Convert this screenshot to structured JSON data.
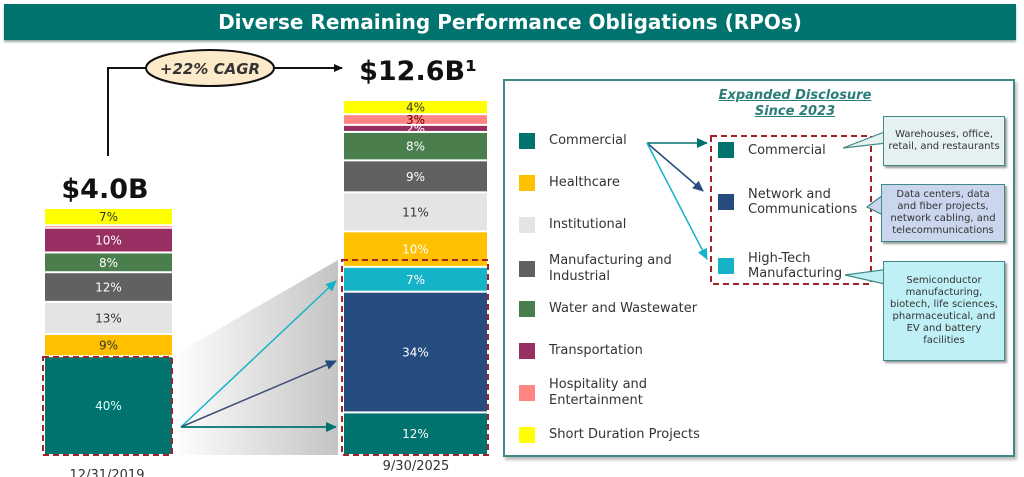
{
  "title": "Diverse Remaining Performance Obligations (RPOs)",
  "cagr_label": "+22% CAGR",
  "chart_data": {
    "type": "bar",
    "stacked": true,
    "title": "Diverse Remaining Performance Obligations (RPOs)",
    "categories": [
      "12/31/2019",
      "9/30/2025"
    ],
    "totals": [
      "$4.0B",
      "$12.6B¹"
    ],
    "annotation": "+22% CAGR",
    "series": [
      {
        "name": "Commercial",
        "color": "#00736e",
        "values": [
          40,
          12
        ]
      },
      {
        "name": "Network and Communications",
        "color": "#264b7e",
        "values": [
          0,
          34
        ]
      },
      {
        "name": "High-Tech Manufacturing",
        "color": "#14b3c8",
        "values": [
          0,
          7
        ]
      },
      {
        "name": "Healthcare",
        "color": "#ffc000",
        "values": [
          9,
          10
        ]
      },
      {
        "name": "Institutional",
        "color": "#e4e4e4",
        "values": [
          13,
          11
        ]
      },
      {
        "name": "Manufacturing and Industrial",
        "color": "#616161",
        "values": [
          12,
          9
        ]
      },
      {
        "name": "Water and Wastewater",
        "color": "#4a7f4d",
        "values": [
          8,
          8
        ]
      },
      {
        "name": "Transportation",
        "color": "#982f63",
        "values": [
          10,
          2
        ]
      },
      {
        "name": "Hospitality and Entertainment",
        "color": "#ff8585",
        "values": [
          1,
          3
        ]
      },
      {
        "name": "Short Duration Projects",
        "color": "#ffff00",
        "values": [
          7,
          4
        ]
      }
    ],
    "labels": {
      "12/31/2019": [
        "40%",
        "",
        "",
        "9%",
        "13%",
        "12%",
        "8%",
        "10%",
        "",
        "7%"
      ],
      "9/30/2025": [
        "12%",
        "34%",
        "7%",
        "10%",
        "11%",
        "9%",
        "8%",
        "2%",
        "3%",
        "4%"
      ]
    },
    "label_colors": [
      "#dff",
      "#fff",
      "#fff",
      "#333",
      "#333",
      "#fff",
      "#fff",
      "#fff",
      "#333",
      "#333"
    ],
    "label_colors_2025": [
      "#fff",
      "#fff",
      "#fff",
      "#fff",
      "#333",
      "#fff",
      "#fff",
      "#fff",
      "#600",
      "#333"
    ],
    "legend": "right"
  },
  "legend": {
    "items": [
      {
        "label": "Commercial",
        "color": "#00736e"
      },
      {
        "label": "Healthcare",
        "color": "#ffc000"
      },
      {
        "label": "Institutional",
        "color": "#e4e4e4"
      },
      {
        "label": "Manufacturing and Industrial",
        "color": "#616161"
      },
      {
        "label": "Water and Wastewater",
        "color": "#4a7f4d"
      },
      {
        "label": "Transportation",
        "color": "#982f63"
      },
      {
        "label": "Hospitality and Entertainment",
        "color": "#ff8585"
      },
      {
        "label": "Short Duration Projects",
        "color": "#ffff00"
      }
    ],
    "expanded_title_line1": "Expanded Disclosure",
    "expanded_title_line2": "Since 2023",
    "sub_items": [
      {
        "label": "Commercial",
        "color": "#00736e"
      },
      {
        "label": "Network and Communications",
        "color": "#264b7e"
      },
      {
        "label": "High-Tech Manufacturing",
        "color": "#14b3c8"
      }
    ],
    "callouts": [
      {
        "text": "Warehouses, office, retail, and restaurants",
        "bg": "#e6f1f1"
      },
      {
        "text": "Data centers, data and fiber projects, network cabling, and telecommunications",
        "bg": "#c9d6ee"
      },
      {
        "text": "Semiconductor manufacturing, biotech, life sciences, pharmaceutical, and EV and battery facilities",
        "bg": "#bff0f5"
      }
    ]
  }
}
